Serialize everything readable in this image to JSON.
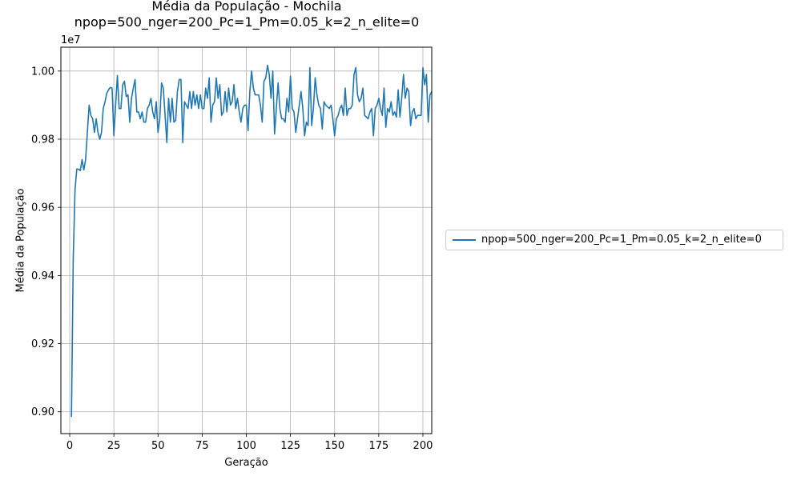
{
  "title_line1": "Média da População - Mochila",
  "title_line2": "npop=500_nger=200_Pc=1_Pm=0.05_k=2_n_elite=0",
  "colors": {
    "series": "#1f77b4",
    "grid": "#b0b0b0",
    "axis": "#000000"
  },
  "chart_data": {
    "type": "line",
    "title": "Média da População - Mochila\nnpop=500_nger=200_Pc=1_Pm=0.05_k=2_n_elite=0",
    "xlabel": "Geração",
    "ylabel": "Média da População",
    "y_offset_text": "1e7",
    "xlim": [
      -5,
      205
    ],
    "ylim": [
      8.916,
      10.05
    ],
    "y_scale_note": "values in units of 1e7",
    "xticks": [
      0,
      25,
      50,
      75,
      100,
      125,
      150,
      175,
      200
    ],
    "xtick_labels": [
      "0",
      "25",
      "50",
      "75",
      "100",
      "125",
      "150",
      "175",
      "200"
    ],
    "yticks": [
      8.98,
      9.18,
      9.38,
      9.58,
      9.78,
      9.98
    ],
    "ytick_labels": [
      "0.90",
      "0.92",
      "0.94",
      "0.96",
      "0.98",
      "1.00"
    ],
    "grid": true,
    "legend_position": "right, outside plot",
    "series": [
      {
        "name": "npop=500_nger=200_Pc=1_Pm=0.05_k=2_n_elite=0",
        "x_start": 1,
        "x_step": 1,
        "y": [
          8.965,
          9.43,
          9.63,
          9.692,
          9.692,
          9.688,
          9.72,
          9.69,
          9.72,
          9.8,
          9.88,
          9.85,
          9.84,
          9.8,
          9.84,
          9.8,
          9.78,
          9.8,
          9.87,
          9.89,
          9.915,
          9.925,
          9.932,
          9.93,
          9.79,
          9.88,
          9.967,
          9.87,
          9.87,
          9.94,
          9.95,
          9.905,
          9.91,
          9.83,
          9.9,
          9.93,
          9.955,
          9.86,
          9.86,
          9.84,
          9.86,
          9.83,
          9.83,
          9.87,
          9.88,
          9.9,
          9.86,
          9.84,
          9.89,
          9.8,
          9.84,
          9.945,
          9.93,
          9.85,
          9.77,
          9.9,
          9.83,
          9.9,
          9.83,
          9.835,
          9.92,
          9.955,
          9.955,
          9.77,
          9.89,
          9.88,
          9.87,
          9.92,
          9.87,
          9.92,
          9.88,
          9.91,
          9.87,
          9.91,
          9.87,
          9.87,
          9.93,
          9.9,
          9.96,
          9.83,
          9.88,
          9.89,
          9.96,
          9.9,
          9.94,
          9.85,
          9.86,
          9.92,
          9.86,
          9.93,
          9.88,
          9.89,
          9.94,
          9.87,
          9.9,
          9.86,
          9.83,
          9.87,
          9.88,
          9.88,
          9.805,
          9.92,
          9.98,
          9.93,
          9.91,
          9.91,
          9.91,
          9.88,
          9.83,
          9.95,
          9.96,
          9.997,
          9.97,
          9.9,
          9.98,
          9.795,
          9.87,
          9.945,
          9.87,
          9.84,
          9.84,
          9.83,
          9.9,
          9.86,
          9.965,
          9.87,
          9.86,
          9.8,
          9.84,
          9.88,
          9.92,
          9.87,
          9.79,
          9.83,
          9.82,
          9.99,
          9.82,
          9.87,
          9.96,
          9.91,
          9.88,
          9.87,
          9.81,
          9.89,
          9.88,
          9.875,
          9.87,
          9.88,
          9.84,
          9.79,
          9.84,
          9.85,
          9.87,
          9.88,
          9.85,
          9.93,
          9.85,
          9.87,
          9.87,
          9.88,
          9.97,
          9.99,
          9.91,
          9.89,
          9.9,
          9.93,
          9.85,
          9.845,
          9.84,
          9.86,
          9.87,
          9.79,
          9.87,
          9.88,
          9.9,
          9.87,
          9.85,
          9.93,
          9.815,
          9.87,
          9.86,
          9.89,
          9.85,
          9.86,
          9.845,
          9.925,
          9.845,
          9.9,
          9.97,
          9.9,
          9.93,
          9.92,
          9.82,
          9.86,
          9.87,
          9.84,
          9.85,
          9.85,
          9.85,
          9.99,
          9.94,
          9.97,
          9.83,
          9.91,
          9.92
        ]
      }
    ]
  }
}
